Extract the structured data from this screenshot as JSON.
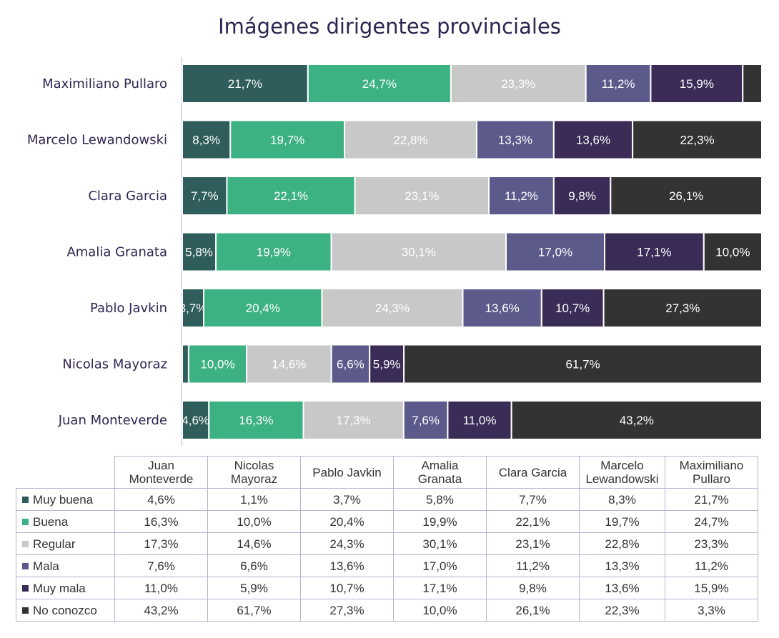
{
  "chart_data": {
    "type": "bar",
    "orientation": "horizontal",
    "stacked": true,
    "normalized": true,
    "title": "Imágenes dirigentes provinciales",
    "categories": [
      "Maximiliano Pullaro",
      "Marcelo Lewandowski",
      "Clara Garcia",
      "Amalia Granata",
      "Pablo Javkin",
      "Nicolas Mayoraz",
      "Juan Monteverde"
    ],
    "series": [
      {
        "name": "Muy buena",
        "color": "#2f5d5b",
        "values": [
          21.7,
          8.3,
          7.7,
          5.8,
          3.7,
          1.1,
          4.6
        ],
        "labels": [
          "21,7%",
          "8,3%",
          "7,7%",
          "5,8%",
          "3,7%",
          "1,1%",
          "4,6%"
        ]
      },
      {
        "name": "Buena",
        "color": "#3cb181",
        "values": [
          24.7,
          19.7,
          22.1,
          19.9,
          20.4,
          10.0,
          16.3
        ],
        "labels": [
          "24,7%",
          "19,7%",
          "22,1%",
          "19,9%",
          "20,4%",
          "10,0%",
          "16,3%"
        ]
      },
      {
        "name": "Regular",
        "color": "#c8c8c8",
        "values": [
          23.3,
          22.8,
          23.1,
          30.1,
          24.3,
          14.6,
          17.3
        ],
        "labels": [
          "23,3%",
          "22,8%",
          "23,1%",
          "30,1%",
          "24,3%",
          "14,6%",
          "17,3%"
        ]
      },
      {
        "name": "Mala",
        "color": "#5c5a8a",
        "values": [
          11.2,
          13.3,
          11.2,
          17.0,
          13.6,
          6.6,
          7.6
        ],
        "labels": [
          "11,2%",
          "13,3%",
          "11,2%",
          "17,0%",
          "13,6%",
          "6,6%",
          "7,6%"
        ]
      },
      {
        "name": "Muy mala",
        "color": "#3b2b57",
        "values": [
          15.9,
          13.6,
          9.8,
          17.1,
          10.7,
          5.9,
          11.0
        ],
        "labels": [
          "15,9%",
          "13,6%",
          "9,8%",
          "17,1%",
          "10,7%",
          "5,9%",
          "11,0%"
        ]
      },
      {
        "name": "No conozco",
        "color": "#333333",
        "values": [
          3.3,
          22.3,
          26.1,
          10.0,
          27.3,
          61.7,
          43.2
        ],
        "labels": [
          "3,3%",
          "22,3%",
          "26,1%",
          "10,0%",
          "27,3%",
          "61,7%",
          "43,2%"
        ]
      }
    ],
    "hidden_labels": [
      [
        0,
        5
      ],
      [
        5,
        0
      ]
    ],
    "xlim": [
      0,
      100
    ],
    "legend": "table-below",
    "table": {
      "columns": [
        {
          "line1": "Juan",
          "line2": "Monteverde"
        },
        {
          "line1": "Nicolas",
          "line2": "Mayoraz"
        },
        {
          "line1": "Pablo Javkin",
          "line2": ""
        },
        {
          "line1": "Amalia",
          "line2": "Granata"
        },
        {
          "line1": "Clara Garcia",
          "line2": ""
        },
        {
          "line1": "Marcelo",
          "line2": "Lewandowski"
        },
        {
          "line1": "Maximiliano",
          "line2": "Pullaro"
        }
      ],
      "rows": [
        {
          "label": "Muy buena",
          "color": "#2f5d5b",
          "cells": [
            "4,6%",
            "1,1%",
            "3,7%",
            "5,8%",
            "7,7%",
            "8,3%",
            "21,7%"
          ]
        },
        {
          "label": "Buena",
          "color": "#3cb181",
          "cells": [
            "16,3%",
            "10,0%",
            "20,4%",
            "19,9%",
            "22,1%",
            "19,7%",
            "24,7%"
          ]
        },
        {
          "label": "Regular",
          "color": "#c8c8c8",
          "cells": [
            "17,3%",
            "14,6%",
            "24,3%",
            "30,1%",
            "23,1%",
            "22,8%",
            "23,3%"
          ]
        },
        {
          "label": "Mala",
          "color": "#5c5a8a",
          "cells": [
            "7,6%",
            "6,6%",
            "13,6%",
            "17,0%",
            "11,2%",
            "13,3%",
            "11,2%"
          ]
        },
        {
          "label": "Muy mala",
          "color": "#3b2b57",
          "cells": [
            "11,0%",
            "5,9%",
            "10,7%",
            "17,1%",
            "9,8%",
            "13,6%",
            "15,9%"
          ]
        },
        {
          "label": "No conozco",
          "color": "#333333",
          "cells": [
            "43,2%",
            "61,7%",
            "27,3%",
            "10,0%",
            "26,1%",
            "22,3%",
            "3,3%"
          ]
        }
      ]
    }
  }
}
